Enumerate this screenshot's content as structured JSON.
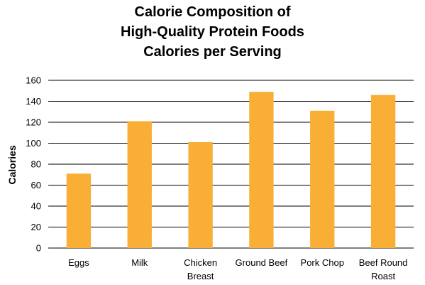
{
  "chart_data": {
    "type": "bar",
    "title_lines": [
      "Calorie Composition of",
      "High-Quality Protein Foods",
      "Calories per Serving"
    ],
    "xlabel": "",
    "ylabel": "Calories",
    "categories": [
      [
        "Eggs"
      ],
      [
        "Milk"
      ],
      [
        "Chicken",
        "Breast"
      ],
      [
        "Ground Beef"
      ],
      [
        "Pork Chop"
      ],
      [
        "Beef Round",
        "Roast"
      ]
    ],
    "values": [
      71,
      121,
      101,
      149,
      131,
      146
    ],
    "ylim": [
      0,
      160
    ],
    "yticks": [
      0,
      20,
      40,
      60,
      80,
      100,
      120,
      140,
      160
    ],
    "grid": true,
    "legend": "none",
    "bar_color": "#F9AE36",
    "grid_color": "#000000"
  }
}
